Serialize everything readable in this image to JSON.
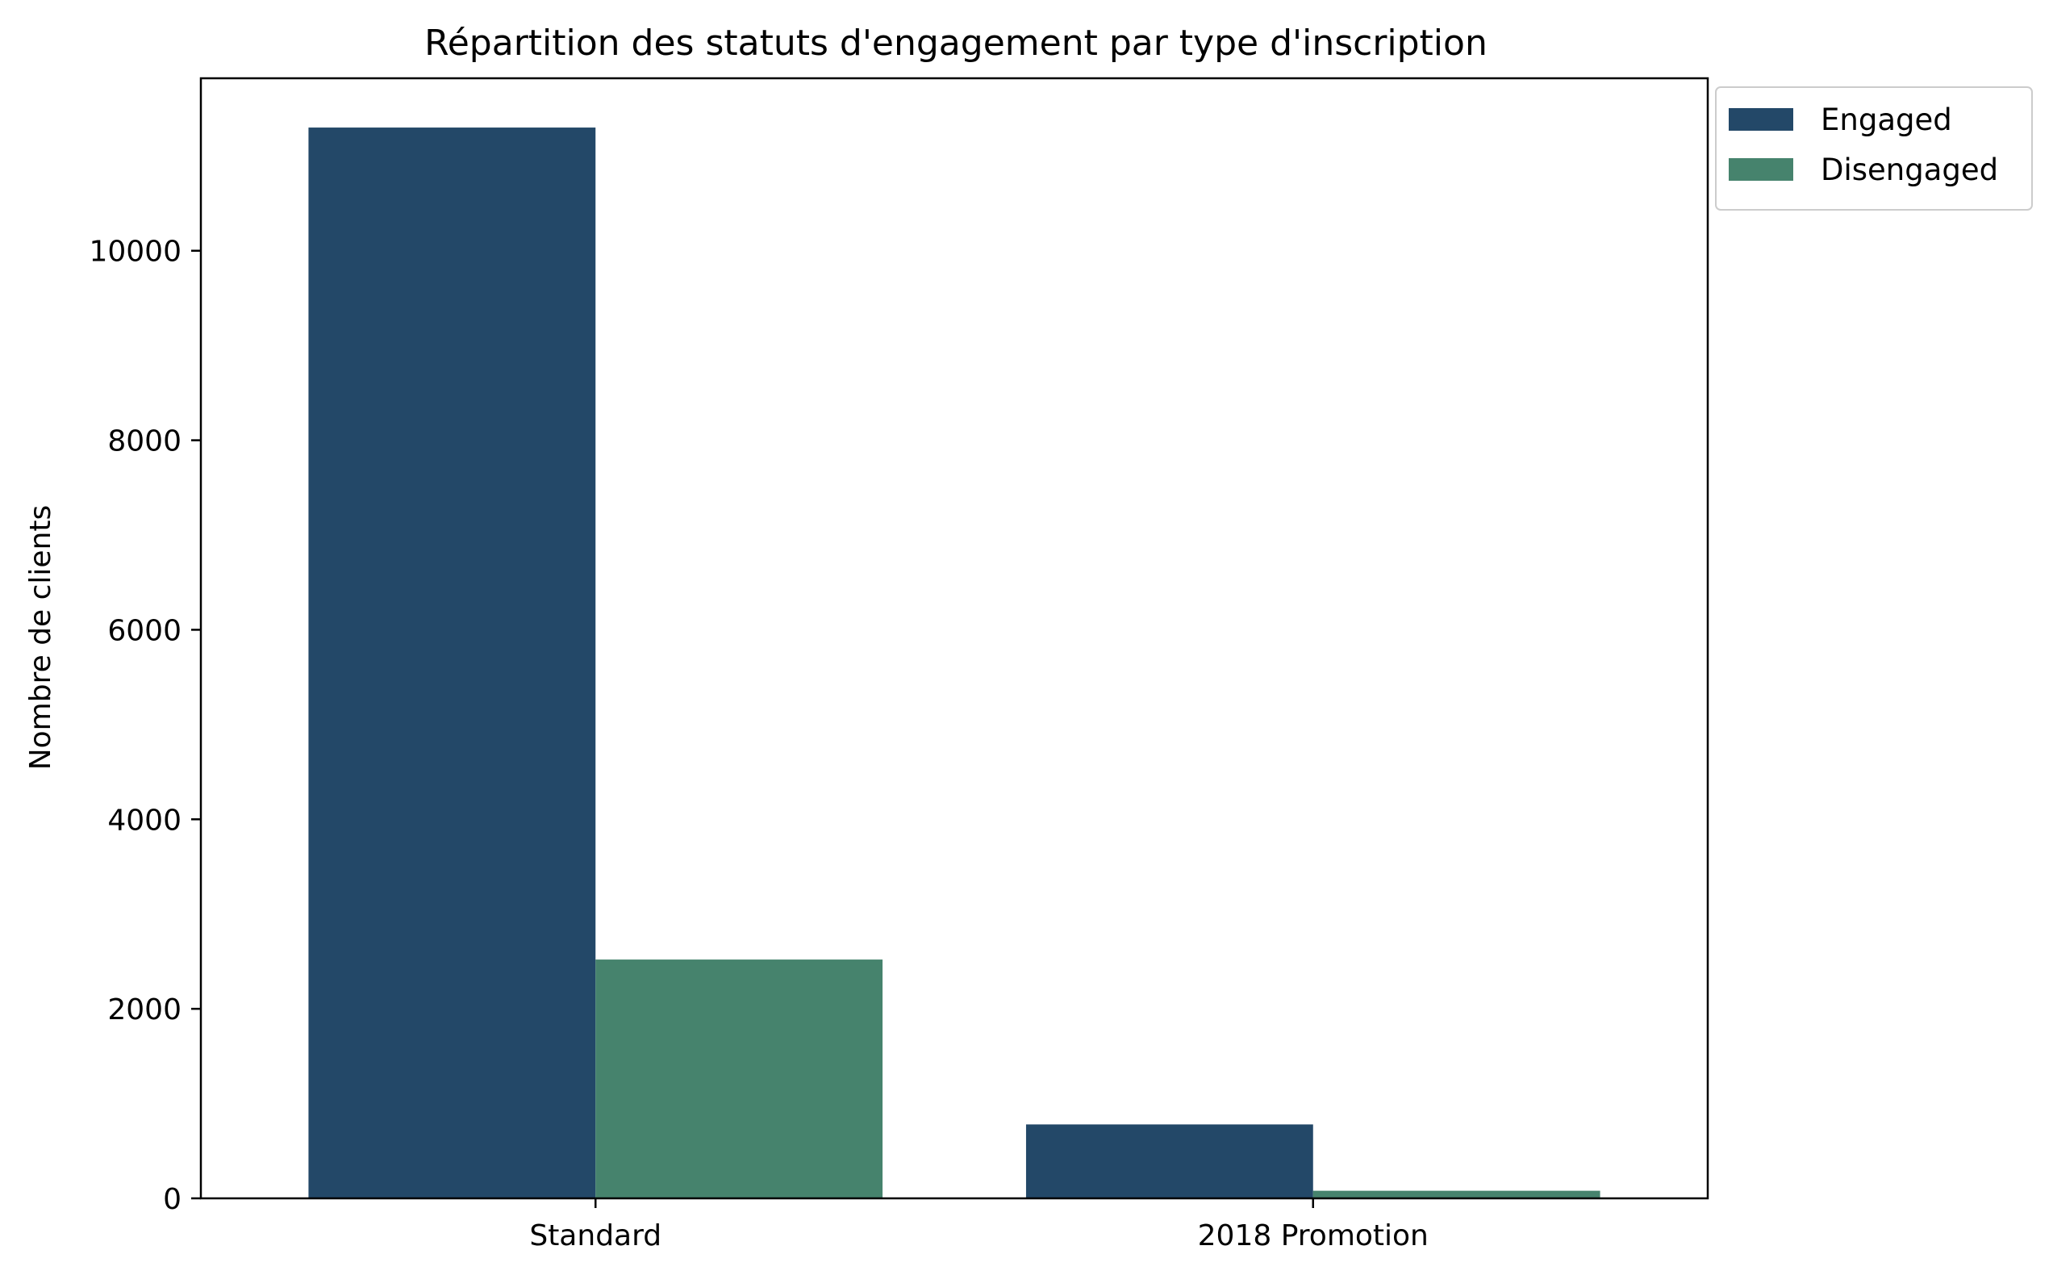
{
  "chart_data": {
    "type": "bar",
    "title": "Répartition des statuts d'engagement par type d'inscription",
    "xlabel": "",
    "ylabel": "Nombre de clients",
    "categories": [
      "Standard",
      "2018 Promotion"
    ],
    "series": [
      {
        "name": "Engaged",
        "color": "#234868",
        "values": [
          11300,
          780
        ]
      },
      {
        "name": "Disengaged",
        "color": "#46836d",
        "values": [
          2520,
          80
        ]
      }
    ],
    "ylim": [
      0,
      11820
    ],
    "yticks": [
      0,
      2000,
      4000,
      6000,
      8000,
      10000
    ],
    "grid": false,
    "legend_position": "outside-top-right"
  }
}
